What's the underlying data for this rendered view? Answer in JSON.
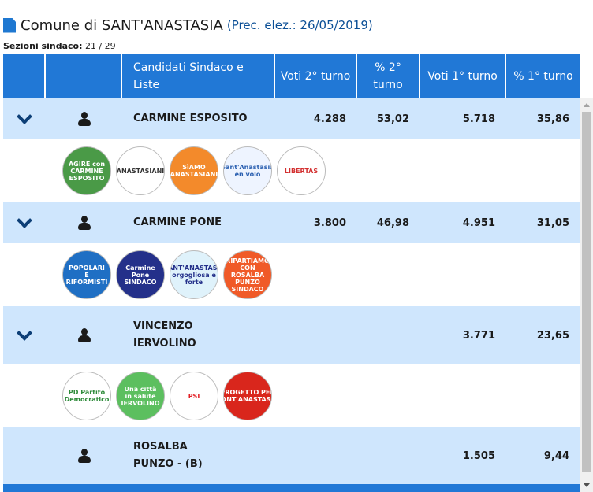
{
  "title": {
    "name": "Comune di SANT'ANASTASIA",
    "prec": "(Prec. elez.: 26/05/2019)"
  },
  "sezioni": {
    "label": "Sezioni sindaco:",
    "value": "21 / 29"
  },
  "headers": [
    "",
    "",
    "Candidati Sindaco e Liste",
    "Voti 2° turno",
    "% 2° turno",
    "Voti 1° turno",
    "% 1° turno"
  ],
  "colors": {
    "header": "#2178d6",
    "row": "#cfe6fd",
    "title_accent": "#0b4f96"
  },
  "candidates": [
    {
      "name": "CARMINE ESPOSITO",
      "voti2": "4.288",
      "perc2": "53,02",
      "voti1": "5.718",
      "perc1": "35,86",
      "expandable": true,
      "logos": [
        {
          "text": "AGIRE con CARMINE ESPOSITO",
          "bg": "#4a9a47",
          "fg": "#fff"
        },
        {
          "text": "ANASTASIANI",
          "bg": "#fff",
          "fg": "#333"
        },
        {
          "text": "SìAMO ANASTASIANI",
          "bg": "#f38a2b",
          "fg": "#fff"
        },
        {
          "text": "Sant'Anastasia en volo",
          "bg": "#eef4ff",
          "fg": "#2a5fb0"
        },
        {
          "text": "LIBERTAS",
          "bg": "#fff",
          "fg": "#d32f2f"
        }
      ]
    },
    {
      "name": "CARMINE PONE",
      "voti2": "3.800",
      "perc2": "46,98",
      "voti1": "4.951",
      "perc1": "31,05",
      "expandable": true,
      "logos": [
        {
          "text": "POPOLARI E RIFORMISTI",
          "bg": "#1f6fc4",
          "fg": "#fff"
        },
        {
          "text": "Carmine Pone SINDACO",
          "bg": "#24308a",
          "fg": "#fff"
        },
        {
          "text": "SANT'ANASTASIA orgogliosa e forte",
          "bg": "#dff2fb",
          "fg": "#24308a"
        },
        {
          "text": "RIPARTIAMO CON ROSALBA PUNZO SINDACO",
          "bg": "#f05a28",
          "fg": "#fff"
        }
      ]
    },
    {
      "name": "VINCENZO IERVOLINO",
      "voti2": "",
      "perc2": "",
      "voti1": "3.771",
      "perc1": "23,65",
      "expandable": true,
      "logos": [
        {
          "text": "PD Partito Democratico",
          "bg": "#fff",
          "fg": "#2e8b3a"
        },
        {
          "text": "Una città in salute IERVOLINO",
          "bg": "#5cbf5f",
          "fg": "#fff"
        },
        {
          "text": "PSI",
          "bg": "#fff",
          "fg": "#e31e24"
        },
        {
          "text": "PROGETTO PER SANT'ANASTASIA",
          "bg": "#d9261c",
          "fg": "#fff"
        }
      ]
    },
    {
      "name": "ROSALBA PUNZO - (B)",
      "voti2": "",
      "perc2": "",
      "voti1": "1.505",
      "perc1": "9,44",
      "expandable": false,
      "logos": []
    }
  ]
}
